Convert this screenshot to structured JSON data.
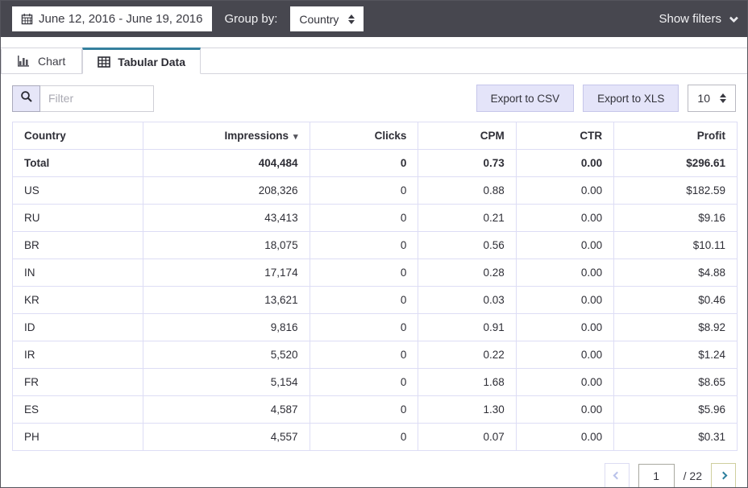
{
  "topbar": {
    "date_range": "June 12, 2016 - June 19, 2016",
    "group_by_label": "Group by:",
    "group_by_value": "Country",
    "show_filters_label": "Show filters"
  },
  "tabs": {
    "chart_label": "Chart",
    "tabular_label": "Tabular Data",
    "active_tab": "Tabular Data"
  },
  "toolbar": {
    "filter_placeholder": "Filter",
    "export_csv_label": "Export to CSV",
    "export_xls_label": "Export to XLS",
    "page_size": "10"
  },
  "table": {
    "columns": [
      "Country",
      "Impressions",
      "Clicks",
      "CPM",
      "CTR",
      "Profit"
    ],
    "column_keys": [
      "country",
      "impressions",
      "clicks",
      "cpm",
      "ctr",
      "profit"
    ],
    "sorted_column": "Impressions",
    "sort_direction": "desc",
    "total_row": [
      "Total",
      "404,484",
      "0",
      "0.73",
      "0.00",
      "$296.61"
    ],
    "rows": [
      [
        "US",
        "208,326",
        "0",
        "0.88",
        "0.00",
        "$182.59"
      ],
      [
        "RU",
        "43,413",
        "0",
        "0.21",
        "0.00",
        "$9.16"
      ],
      [
        "BR",
        "18,075",
        "0",
        "0.56",
        "0.00",
        "$10.11"
      ],
      [
        "IN",
        "17,174",
        "0",
        "0.28",
        "0.00",
        "$4.88"
      ],
      [
        "KR",
        "13,621",
        "0",
        "0.03",
        "0.00",
        "$0.46"
      ],
      [
        "ID",
        "9,816",
        "0",
        "0.91",
        "0.00",
        "$8.92"
      ],
      [
        "IR",
        "5,520",
        "0",
        "0.22",
        "0.00",
        "$1.24"
      ],
      [
        "FR",
        "5,154",
        "0",
        "1.68",
        "0.00",
        "$8.65"
      ],
      [
        "ES",
        "4,587",
        "0",
        "1.30",
        "0.00",
        "$5.96"
      ],
      [
        "PH",
        "4,557",
        "0",
        "0.07",
        "0.00",
        "$0.31"
      ]
    ]
  },
  "pagination": {
    "current_page": "1",
    "total_pages_label": "/ 22"
  },
  "colors": {
    "topbar_bg": "#47474f",
    "accent_teal": "#35809e",
    "table_border": "#ddddf5",
    "button_bg": "#e4e4f9",
    "button_border": "#c6c6ea",
    "next_button_border": "#cfcf9e",
    "next_chevron": "#2d7f9d",
    "prev_chevron": "#b9c2ea"
  }
}
